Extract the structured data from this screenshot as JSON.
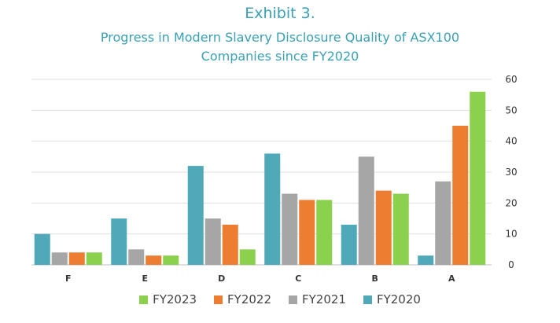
{
  "header": {
    "exhibit": "Exhibit 3.",
    "title_line1": "Progress in Modern Slavery Disclosure Quality of ASX100",
    "title_line2": "Companies since FY2020"
  },
  "colors": {
    "title": "#3aa0b4",
    "grid": "#e0e0e0"
  },
  "chart_data": {
    "type": "bar",
    "title": "Exhibit 3. Progress in Modern Slavery Disclosure Quality of ASX100 Companies since FY2020",
    "categories": [
      "F",
      "E",
      "D",
      "C",
      "B",
      "A"
    ],
    "series": [
      {
        "name": "FY2020",
        "color": "#4fa9b9",
        "values": [
          10,
          15,
          32,
          36,
          13,
          3
        ]
      },
      {
        "name": "FY2021",
        "color": "#a6a6a6",
        "values": [
          4,
          5,
          15,
          23,
          35,
          27
        ]
      },
      {
        "name": "FY2022",
        "color": "#ed7d31",
        "values": [
          4,
          3,
          13,
          21,
          24,
          45
        ]
      },
      {
        "name": "FY2023",
        "color": "#8bd14e",
        "values": [
          4,
          3,
          5,
          21,
          23,
          56
        ]
      }
    ],
    "legend_order": [
      "FY2023",
      "FY2022",
      "FY2021",
      "FY2020"
    ],
    "y_ticks": [
      0,
      10,
      20,
      30,
      40,
      50,
      60
    ],
    "ylim": [
      0,
      60
    ],
    "y_axis_side": "right",
    "grid": true,
    "legend_position": "bottom"
  }
}
